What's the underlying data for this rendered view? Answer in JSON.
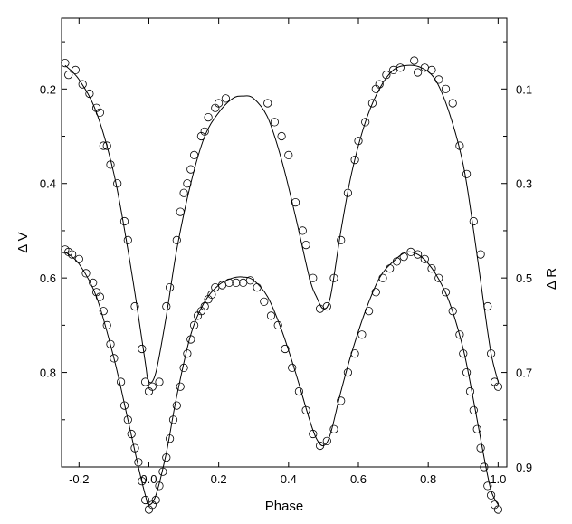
{
  "chart_data": {
    "type": "scatter",
    "xlabel": "Phase",
    "ylabel_left": "Δ V",
    "ylabel_right": "Δ R",
    "xlim": [
      -0.25,
      1.025
    ],
    "ylim_left": [
      0.05,
      1.0
    ],
    "ylim_right": [
      -0.05,
      0.9
    ],
    "x_ticks": [
      -0.2,
      0,
      0.2,
      0.4,
      0.6,
      0.8,
      1.0
    ],
    "x_tick_labels": [
      "-0.2",
      "0.0",
      "0.2",
      "0.4",
      "0.6",
      "0.8",
      "1.0"
    ],
    "y_left_ticks": [
      0.2,
      0.4,
      0.6,
      0.8
    ],
    "y_left_tick_labels": [
      "0.2",
      "0.4",
      "0.6",
      "0.8"
    ],
    "y_left_minor_ticks": [
      0.1,
      0.3,
      0.5,
      0.7,
      0.9,
      1.0
    ],
    "y_right_ticks": [
      0.1,
      0.3,
      0.5,
      0.7,
      0.9
    ],
    "y_right_tick_labels": [
      "0.1",
      "0.3",
      "0.5",
      "0.7",
      "0.9"
    ],
    "y_right_minor_ticks": [
      0.0,
      0.2,
      0.4,
      0.6,
      0.8
    ],
    "grid": false,
    "inverted_y": true,
    "series": [
      {
        "axis": "left",
        "curve": [
          [
            -0.24,
            0.15
          ],
          [
            -0.2,
            0.18
          ],
          [
            -0.15,
            0.25
          ],
          [
            -0.1,
            0.38
          ],
          [
            -0.06,
            0.54
          ],
          [
            -0.03,
            0.68
          ],
          [
            -0.01,
            0.78
          ],
          [
            0.0,
            0.82
          ],
          [
            0.02,
            0.8
          ],
          [
            0.05,
            0.68
          ],
          [
            0.08,
            0.54
          ],
          [
            0.12,
            0.4
          ],
          [
            0.16,
            0.3
          ],
          [
            0.2,
            0.25
          ],
          [
            0.24,
            0.22
          ],
          [
            0.27,
            0.215
          ],
          [
            0.3,
            0.22
          ],
          [
            0.34,
            0.26
          ],
          [
            0.38,
            0.35
          ],
          [
            0.42,
            0.47
          ],
          [
            0.46,
            0.6
          ],
          [
            0.48,
            0.64
          ],
          [
            0.5,
            0.665
          ],
          [
            0.52,
            0.64
          ],
          [
            0.55,
            0.5
          ],
          [
            0.58,
            0.38
          ],
          [
            0.62,
            0.27
          ],
          [
            0.66,
            0.2
          ],
          [
            0.7,
            0.16
          ],
          [
            0.74,
            0.15
          ],
          [
            0.78,
            0.155
          ],
          [
            0.82,
            0.18
          ],
          [
            0.86,
            0.25
          ],
          [
            0.9,
            0.36
          ],
          [
            0.93,
            0.5
          ],
          [
            0.96,
            0.66
          ],
          [
            0.98,
            0.76
          ],
          [
            1.0,
            0.82
          ]
        ],
        "points": [
          [
            -0.24,
            0.145
          ],
          [
            -0.23,
            0.17
          ],
          [
            -0.21,
            0.16
          ],
          [
            -0.19,
            0.19
          ],
          [
            -0.17,
            0.21
          ],
          [
            -0.15,
            0.24
          ],
          [
            -0.14,
            0.25
          ],
          [
            -0.13,
            0.32
          ],
          [
            -0.12,
            0.32
          ],
          [
            -0.11,
            0.36
          ],
          [
            -0.09,
            0.4
          ],
          [
            -0.07,
            0.48
          ],
          [
            -0.06,
            0.52
          ],
          [
            -0.04,
            0.66
          ],
          [
            -0.02,
            0.75
          ],
          [
            -0.01,
            0.82
          ],
          [
            0.0,
            0.84
          ],
          [
            0.01,
            0.83
          ],
          [
            0.03,
            0.82
          ],
          [
            0.05,
            0.66
          ],
          [
            0.06,
            0.62
          ],
          [
            0.08,
            0.52
          ],
          [
            0.09,
            0.46
          ],
          [
            0.1,
            0.42
          ],
          [
            0.11,
            0.4
          ],
          [
            0.12,
            0.37
          ],
          [
            0.13,
            0.34
          ],
          [
            0.15,
            0.3
          ],
          [
            0.16,
            0.29
          ],
          [
            0.17,
            0.26
          ],
          [
            0.19,
            0.24
          ],
          [
            0.2,
            0.23
          ],
          [
            0.22,
            0.22
          ],
          [
            0.34,
            0.23
          ],
          [
            0.36,
            0.27
          ],
          [
            0.38,
            0.3
          ],
          [
            0.4,
            0.34
          ],
          [
            0.42,
            0.44
          ],
          [
            0.44,
            0.5
          ],
          [
            0.45,
            0.53
          ],
          [
            0.47,
            0.6
          ],
          [
            0.49,
            0.665
          ],
          [
            0.51,
            0.66
          ],
          [
            0.53,
            0.6
          ],
          [
            0.55,
            0.52
          ],
          [
            0.57,
            0.42
          ],
          [
            0.59,
            0.35
          ],
          [
            0.6,
            0.31
          ],
          [
            0.62,
            0.27
          ],
          [
            0.64,
            0.23
          ],
          [
            0.65,
            0.2
          ],
          [
            0.66,
            0.19
          ],
          [
            0.68,
            0.17
          ],
          [
            0.7,
            0.16
          ],
          [
            0.72,
            0.155
          ],
          [
            0.76,
            0.14
          ],
          [
            0.77,
            0.165
          ],
          [
            0.79,
            0.155
          ],
          [
            0.81,
            0.16
          ],
          [
            0.83,
            0.18
          ],
          [
            0.85,
            0.2
          ],
          [
            0.87,
            0.23
          ],
          [
            0.89,
            0.32
          ],
          [
            0.91,
            0.38
          ],
          [
            0.93,
            0.48
          ],
          [
            0.95,
            0.55
          ],
          [
            0.97,
            0.66
          ],
          [
            0.98,
            0.76
          ],
          [
            0.99,
            0.82
          ],
          [
            1.0,
            0.83
          ]
        ]
      },
      {
        "axis": "left",
        "curve": [
          [
            -0.24,
            0.545
          ],
          [
            -0.2,
            0.57
          ],
          [
            -0.15,
            0.64
          ],
          [
            -0.1,
            0.77
          ],
          [
            -0.06,
            0.9
          ],
          [
            -0.03,
            1.0
          ],
          [
            -0.01,
            1.06
          ],
          [
            0.0,
            1.08
          ],
          [
            0.02,
            1.06
          ],
          [
            0.05,
            0.97
          ],
          [
            0.08,
            0.85
          ],
          [
            0.12,
            0.72
          ],
          [
            0.16,
            0.65
          ],
          [
            0.2,
            0.615
          ],
          [
            0.24,
            0.6
          ],
          [
            0.27,
            0.598
          ],
          [
            0.3,
            0.605
          ],
          [
            0.34,
            0.64
          ],
          [
            0.38,
            0.71
          ],
          [
            0.42,
            0.8
          ],
          [
            0.46,
            0.9
          ],
          [
            0.48,
            0.94
          ],
          [
            0.5,
            0.955
          ],
          [
            0.52,
            0.93
          ],
          [
            0.55,
            0.84
          ],
          [
            0.58,
            0.76
          ],
          [
            0.62,
            0.67
          ],
          [
            0.66,
            0.6
          ],
          [
            0.7,
            0.565
          ],
          [
            0.74,
            0.545
          ],
          [
            0.78,
            0.555
          ],
          [
            0.82,
            0.59
          ],
          [
            0.86,
            0.65
          ],
          [
            0.9,
            0.75
          ],
          [
            0.93,
            0.86
          ],
          [
            0.96,
            0.98
          ],
          [
            0.98,
            1.05
          ],
          [
            1.0,
            1.08
          ]
        ],
        "points": [
          [
            -0.24,
            0.54
          ],
          [
            -0.23,
            0.545
          ],
          [
            -0.22,
            0.55
          ],
          [
            -0.2,
            0.56
          ],
          [
            -0.18,
            0.59
          ],
          [
            -0.16,
            0.61
          ],
          [
            -0.15,
            0.63
          ],
          [
            -0.14,
            0.64
          ],
          [
            -0.13,
            0.67
          ],
          [
            -0.12,
            0.7
          ],
          [
            -0.11,
            0.74
          ],
          [
            -0.1,
            0.77
          ],
          [
            -0.08,
            0.82
          ],
          [
            -0.07,
            0.87
          ],
          [
            -0.06,
            0.9
          ],
          [
            -0.05,
            0.93
          ],
          [
            -0.04,
            0.96
          ],
          [
            -0.03,
            0.99
          ],
          [
            -0.02,
            1.03
          ],
          [
            -0.01,
            1.07
          ],
          [
            0.0,
            1.09
          ],
          [
            0.01,
            1.08
          ],
          [
            0.02,
            1.07
          ],
          [
            0.03,
            1.04
          ],
          [
            0.04,
            1.01
          ],
          [
            0.05,
            0.98
          ],
          [
            0.06,
            0.94
          ],
          [
            0.07,
            0.9
          ],
          [
            0.08,
            0.87
          ],
          [
            0.09,
            0.83
          ],
          [
            0.1,
            0.79
          ],
          [
            0.11,
            0.76
          ],
          [
            0.12,
            0.73
          ],
          [
            0.13,
            0.7
          ],
          [
            0.14,
            0.68
          ],
          [
            0.15,
            0.67
          ],
          [
            0.16,
            0.66
          ],
          [
            0.17,
            0.645
          ],
          [
            0.18,
            0.635
          ],
          [
            0.19,
            0.62
          ],
          [
            0.21,
            0.615
          ],
          [
            0.23,
            0.61
          ],
          [
            0.25,
            0.61
          ],
          [
            0.27,
            0.61
          ],
          [
            0.29,
            0.605
          ],
          [
            0.31,
            0.62
          ],
          [
            0.33,
            0.65
          ],
          [
            0.35,
            0.68
          ],
          [
            0.37,
            0.7
          ],
          [
            0.39,
            0.75
          ],
          [
            0.41,
            0.79
          ],
          [
            0.43,
            0.84
          ],
          [
            0.45,
            0.88
          ],
          [
            0.47,
            0.93
          ],
          [
            0.49,
            0.955
          ],
          [
            0.51,
            0.945
          ],
          [
            0.53,
            0.92
          ],
          [
            0.55,
            0.86
          ],
          [
            0.57,
            0.8
          ],
          [
            0.59,
            0.76
          ],
          [
            0.61,
            0.72
          ],
          [
            0.63,
            0.67
          ],
          [
            0.65,
            0.63
          ],
          [
            0.67,
            0.6
          ],
          [
            0.69,
            0.58
          ],
          [
            0.71,
            0.565
          ],
          [
            0.73,
            0.555
          ],
          [
            0.75,
            0.545
          ],
          [
            0.77,
            0.55
          ],
          [
            0.79,
            0.56
          ],
          [
            0.81,
            0.58
          ],
          [
            0.83,
            0.6
          ],
          [
            0.85,
            0.63
          ],
          [
            0.87,
            0.67
          ],
          [
            0.89,
            0.72
          ],
          [
            0.9,
            0.76
          ],
          [
            0.91,
            0.8
          ],
          [
            0.92,
            0.84
          ],
          [
            0.93,
            0.88
          ],
          [
            0.94,
            0.92
          ],
          [
            0.95,
            0.96
          ],
          [
            0.96,
            1.0
          ],
          [
            0.97,
            1.04
          ],
          [
            0.98,
            1.06
          ],
          [
            0.99,
            1.08
          ],
          [
            1.0,
            1.09
          ]
        ]
      }
    ]
  }
}
